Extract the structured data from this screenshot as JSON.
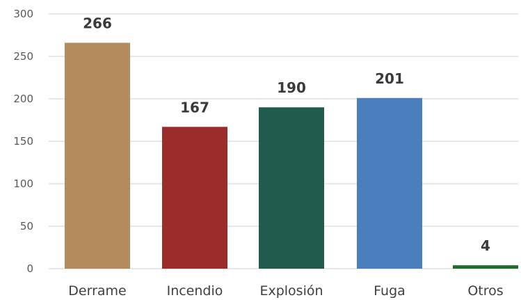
{
  "chart_data": {
    "type": "bar",
    "title": "",
    "xlabel": "",
    "ylabel": "",
    "categories": [
      "Derrame",
      "Incendio",
      "Explosión",
      "Fuga",
      "Otros"
    ],
    "values": [
      266,
      167,
      190,
      201,
      4
    ],
    "data_labels": [
      "266",
      "167",
      "190",
      "201",
      "4"
    ],
    "colors": [
      "#b38b5d",
      "#9b2c2c",
      "#1f5c4d",
      "#4a7fbd",
      "#1e6b2e"
    ],
    "ylim": [
      0,
      300
    ],
    "yticks": [
      "0",
      "50",
      "100",
      "150",
      "200",
      "250",
      "300"
    ],
    "grid": true,
    "legend": "none"
  }
}
